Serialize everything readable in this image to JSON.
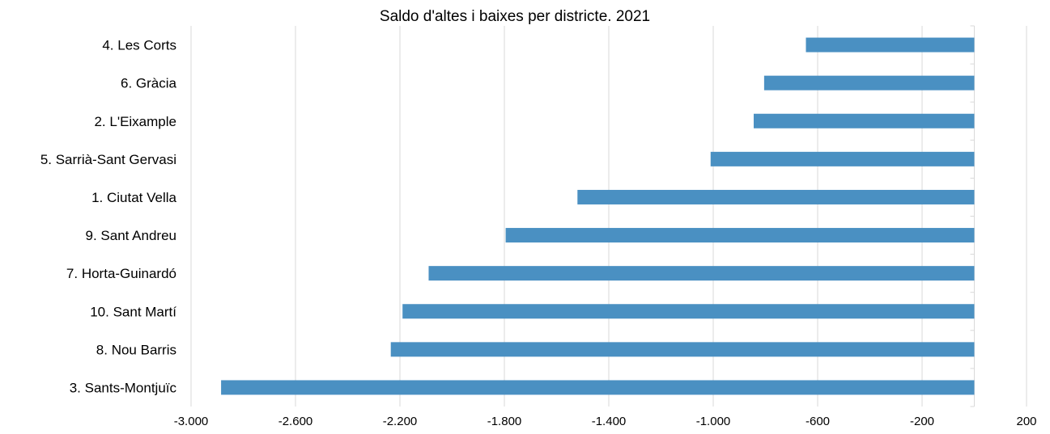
{
  "chart_data": {
    "type": "bar",
    "orientation": "horizontal",
    "title": "Saldo d'altes i baixes per districte. 2021",
    "xlabel": "",
    "ylabel": "",
    "categories": [
      "4. Les Corts",
      "6. Gràcia",
      "2. L'Eixample",
      "5. Sarrià-Sant Gervasi",
      "1. Ciutat Vella",
      "9. Sant Andreu",
      "7. Horta-Guinardó",
      "10. Sant Martí",
      "8. Nou Barris",
      "3. Sants-Montjuïc"
    ],
    "values": [
      -645,
      -805,
      -845,
      -1010,
      -1520,
      -1795,
      -2090,
      -2190,
      -2235,
      -2885
    ],
    "xlim": [
      -3000,
      200
    ],
    "xticks": [
      -3000,
      -2600,
      -2200,
      -1800,
      -1400,
      -1000,
      -600,
      -200,
      200
    ],
    "xtick_labels": [
      "-3.000",
      "-2.600",
      "-2.200",
      "-1.800",
      "-1.400",
      "-1.000",
      "-600",
      "-200",
      "200"
    ],
    "grid": true,
    "legend": "none",
    "bar_color": "#4a90c2",
    "grid_color": "#d9d9d9"
  }
}
